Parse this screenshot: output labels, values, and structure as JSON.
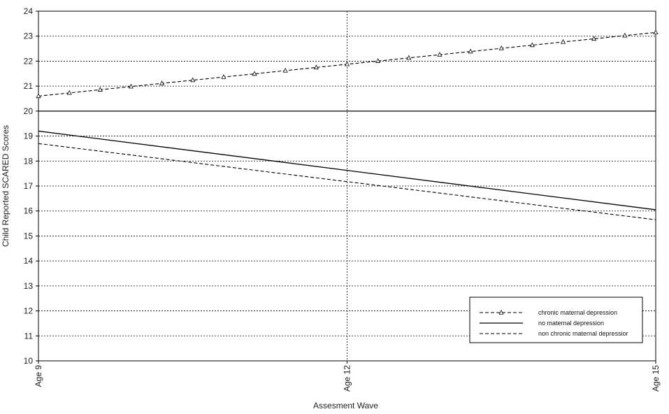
{
  "chart_data": {
    "type": "line",
    "xlabel": "Assesment Wave",
    "ylabel": "Child Reported SCARED Scores",
    "x_categories": [
      "Age 9",
      "Age 12",
      "Age 15"
    ],
    "x_range": [
      9,
      15
    ],
    "ylim": [
      10,
      24
    ],
    "y_ticks": [
      "10",
      "11",
      "12",
      "13",
      "14",
      "15",
      "16",
      "17",
      "18",
      "19",
      "20",
      "21",
      "22",
      "23",
      "24"
    ],
    "grid": "horizontal dotted lines at each integer; vertical dotted line at Age 12; solid line at 20",
    "legend_position": "bottom-right",
    "series": [
      {
        "name": "chronic maternal depression",
        "style": "dashed-triangle",
        "x": [
          9,
          15
        ],
        "y": [
          20.6,
          23.15
        ]
      },
      {
        "name": "no maternal depression",
        "style": "solid",
        "x": [
          9,
          15
        ],
        "y": [
          19.2,
          16.05
        ]
      },
      {
        "name": "non chronic maternal depressior",
        "style": "dashed",
        "x": [
          9,
          15
        ],
        "y": [
          18.7,
          15.65
        ]
      }
    ]
  }
}
